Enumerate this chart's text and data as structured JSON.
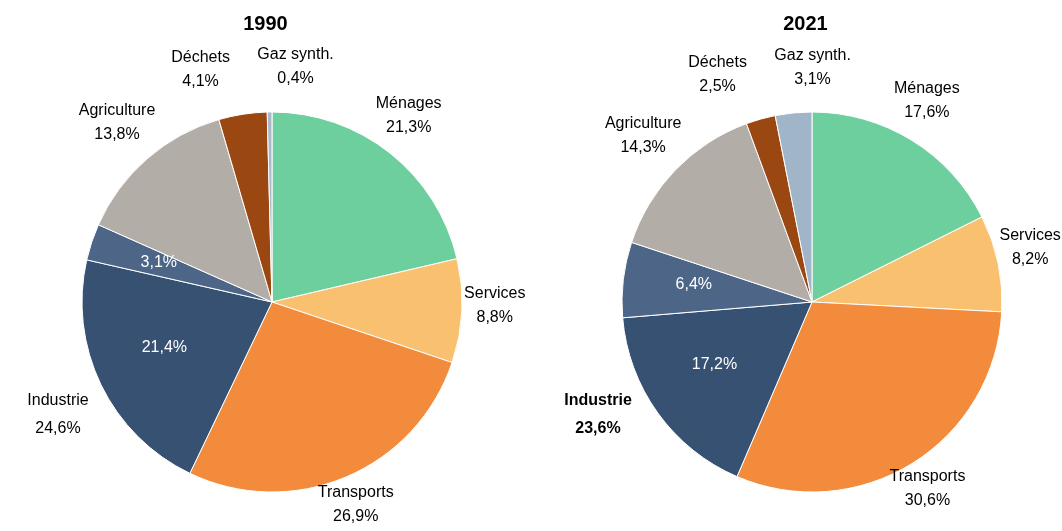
{
  "chart_data": [
    {
      "type": "pie",
      "title": "1990",
      "categories": [
        "Ménages",
        "Services",
        "Transports",
        null,
        null,
        "Agriculture",
        "Déchets",
        "Gaz synth."
      ],
      "values": [
        21.3,
        8.8,
        26.9,
        21.4,
        3.1,
        13.8,
        4.1,
        0.4
      ],
      "colors": [
        "#6dcf9e",
        "#f8c06f",
        "#f28b3c",
        "#365171",
        "#4d6688",
        "#b3ada8",
        "#9b4712",
        "#a9b9c9"
      ],
      "value_labels": [
        "21,3%",
        "8,8%",
        "26,9%",
        "21,4%",
        "3,1%",
        "13,8%",
        "4,1%",
        "0,4%"
      ],
      "annotations": [
        "Industrie",
        "24,6%"
      ]
    },
    {
      "type": "pie",
      "title": "2021",
      "categories": [
        "Ménages",
        "Services",
        "Transports",
        null,
        null,
        "Agriculture",
        "Déchets",
        "Gaz synth."
      ],
      "values": [
        17.6,
        8.2,
        30.6,
        17.2,
        6.4,
        14.3,
        2.5,
        3.1
      ],
      "colors": [
        "#6dcf9e",
        "#f8c06f",
        "#f28b3c",
        "#365171",
        "#4d6688",
        "#b3ada8",
        "#9b4712",
        "#a1b5c8"
      ],
      "value_labels": [
        "17,6%",
        "8,2%",
        "30,6%",
        "17,2%",
        "6,4%",
        "14,3%",
        "2,5%",
        "3,1%"
      ],
      "annotations": [
        "Industrie",
        "23,6%"
      ]
    }
  ]
}
